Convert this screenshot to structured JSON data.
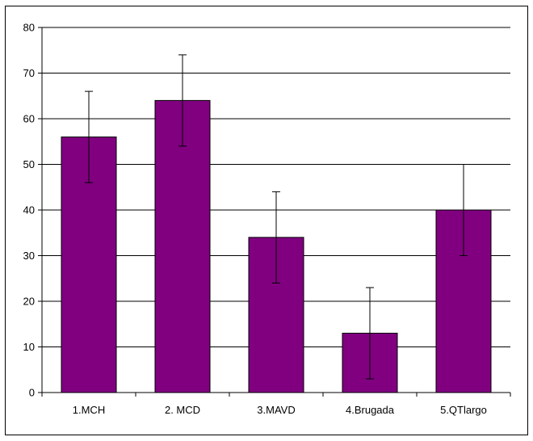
{
  "chart_data": {
    "type": "bar",
    "title": "",
    "xlabel": "",
    "ylabel": "",
    "categories": [
      "1.MCH",
      "2. MCD",
      "3.MAVD",
      "4.Brugada",
      "5.QTlargo"
    ],
    "values": [
      56,
      64,
      34,
      13,
      40
    ],
    "error_upper": [
      66,
      74,
      44,
      23,
      50
    ],
    "error_lower": [
      46,
      54,
      24,
      3,
      30
    ],
    "ylim": [
      0,
      80
    ],
    "yticks": [
      "0",
      "10",
      "20",
      "30",
      "40",
      "50",
      "60",
      "70",
      "80"
    ],
    "grid": true,
    "legend": "none",
    "bar_color": "#800080",
    "grid_color": "#000000"
  }
}
